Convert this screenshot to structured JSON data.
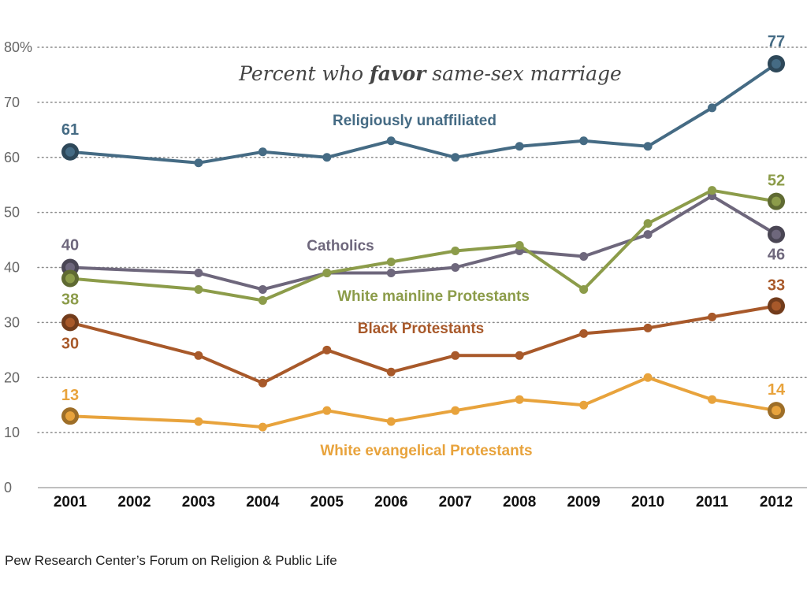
{
  "subtitle": {
    "before": "Percent who ",
    "emphasis": "favor",
    "after": " same-sex marriage"
  },
  "source": "Pew Research Center’s Forum on Religion & Public Life",
  "chart_data": {
    "type": "line",
    "x": [
      "2001",
      "2002",
      "2003",
      "2004",
      "2005",
      "2006",
      "2007",
      "2008",
      "2009",
      "2010",
      "2011",
      "2012"
    ],
    "ylim": [
      0,
      80
    ],
    "yticks": [
      {
        "value": 0,
        "label": "0"
      },
      {
        "value": 10,
        "label": "10"
      },
      {
        "value": 20,
        "label": "20"
      },
      {
        "value": 30,
        "label": "30"
      },
      {
        "value": 40,
        "label": "40"
      },
      {
        "value": 50,
        "label": "50"
      },
      {
        "value": 60,
        "label": "60"
      },
      {
        "value": 70,
        "label": "70"
      },
      {
        "value": 80,
        "label": "80%"
      }
    ],
    "grid": true,
    "series": [
      {
        "name": "Religiously unaffiliated",
        "color": "#456b84",
        "values": [
          61,
          null,
          59,
          61,
          60,
          63,
          60,
          62,
          63,
          62,
          69,
          77
        ],
        "start_label": "61",
        "end_label": "77"
      },
      {
        "name": "Catholics",
        "color": "#6e677c",
        "values": [
          40,
          null,
          39,
          36,
          39,
          39,
          40,
          43,
          42,
          46,
          53,
          46
        ],
        "start_label": "40",
        "end_label": "46"
      },
      {
        "name": "White mainline Protestants",
        "color": "#8c9c4a",
        "values": [
          38,
          null,
          36,
          34,
          39,
          41,
          43,
          44,
          36,
          48,
          54,
          52
        ],
        "start_label": "38",
        "end_label": "52"
      },
      {
        "name": "Black Protestants",
        "color": "#a8592a",
        "values": [
          30,
          null,
          24,
          19,
          25,
          21,
          24,
          24,
          28,
          29,
          31,
          33
        ],
        "start_label": "30",
        "end_label": "33"
      },
      {
        "name": "White evangelical Protestants",
        "color": "#e8a33c",
        "values": [
          13,
          null,
          12,
          11,
          14,
          12,
          14,
          16,
          15,
          20,
          16,
          14
        ],
        "start_label": "13",
        "end_label": "14"
      }
    ]
  }
}
